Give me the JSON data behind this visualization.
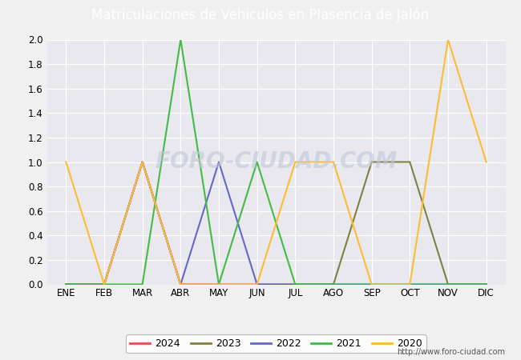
{
  "title": "Matriculaciones de Vehiculos en Plasencia de Jalón",
  "title_bg_color": "#4d7cc9",
  "title_text_color": "#ffffff",
  "months": [
    "ENE",
    "FEB",
    "MAR",
    "ABR",
    "MAY",
    "JUN",
    "JUL",
    "AGO",
    "SEP",
    "OCT",
    "NOV",
    "DIC"
  ],
  "series": {
    "2024": {
      "color": "#e05050",
      "values": [
        0,
        0,
        1,
        0,
        0,
        null,
        null,
        null,
        null,
        null,
        null,
        null
      ]
    },
    "2023": {
      "color": "#808040",
      "values": [
        0,
        0,
        1,
        0,
        0,
        0,
        0,
        0,
        1,
        1,
        0,
        0
      ]
    },
    "2022": {
      "color": "#6666cc",
      "values": [
        0,
        0,
        1,
        0,
        1,
        0,
        0,
        0,
        0,
        0,
        0,
        0
      ]
    },
    "2021": {
      "color": "#44bb44",
      "values": [
        0,
        0,
        0,
        2,
        0,
        1,
        0,
        0,
        0,
        0,
        0,
        0
      ]
    },
    "2020": {
      "color": "#ffbb33",
      "values": [
        1,
        0,
        1,
        0,
        0,
        0,
        1,
        1,
        0,
        0,
        2,
        1
      ]
    }
  },
  "ylim": [
    0,
    2.0
  ],
  "yticks": [
    0.0,
    0.2,
    0.4,
    0.6,
    0.8,
    1.0,
    1.2,
    1.4,
    1.6,
    1.8,
    2.0
  ],
  "outer_bg_color": "#f0f0f0",
  "plot_bg_color": "#e8e8ee",
  "grid_color": "#ffffff",
  "legend_bg": "#ffffff",
  "watermark": "FORO-CIUDAD.COM",
  "url": "http://www.foro-ciudad.com",
  "series_order": [
    "2024",
    "2023",
    "2022",
    "2021",
    "2020"
  ]
}
